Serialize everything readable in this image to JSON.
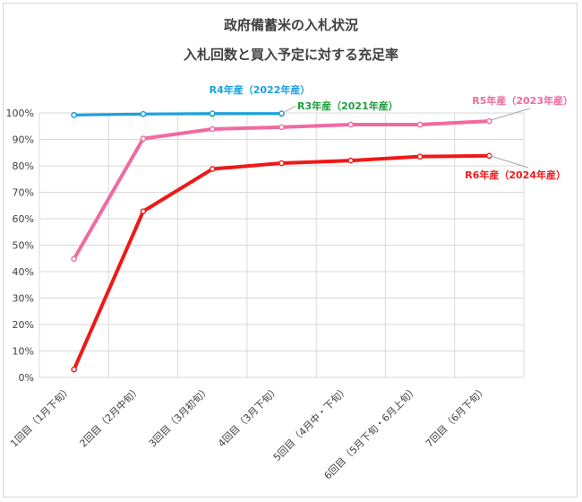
{
  "colors": {
    "r4": "#1aa0e0",
    "r3": "#1e9e3e",
    "r5": "#f06aa0",
    "r6": "#f01818",
    "grid": "#d9d9d9",
    "leader": "#a6a6a6"
  },
  "chart_data": {
    "type": "line",
    "title": "政府備蓄米の入札状況",
    "subtitle": "入札回数と買入予定に対する充足率",
    "xlabel": "",
    "ylabel": "",
    "ylim": [
      0,
      100
    ],
    "grid": true,
    "categories": [
      "1回目（1月下旬）",
      "2回目（2月中旬）",
      "3回目（3月初旬）",
      "4回目（3月下旬）",
      "5回目（4月中・下旬）",
      "6回目（5月下旬・6月上旬）",
      "7回目（6月下旬）"
    ],
    "y_ticks": [
      "0%",
      "10%",
      "20%",
      "30%",
      "40%",
      "50%",
      "60%",
      "70%",
      "80%",
      "90%",
      "100%"
    ],
    "series": [
      {
        "name": "R4年産（2022年産）",
        "key": "r4",
        "values": [
          99.2,
          99.6,
          99.8,
          99.8,
          null,
          null,
          null
        ]
      },
      {
        "name": "R3年産（2021年産）",
        "key": "r3",
        "values": [
          99.2,
          99.5,
          99.6,
          99.7,
          null,
          null,
          null
        ]
      },
      {
        "name": "R5年産（2023年産）",
        "key": "r5",
        "values": [
          44.8,
          90.3,
          93.9,
          94.6,
          95.6,
          95.6,
          96.9
        ]
      },
      {
        "name": "R6年産（2024年産）",
        "key": "r6",
        "values": [
          3.0,
          62.8,
          78.8,
          81.0,
          82.0,
          83.5,
          83.8
        ]
      }
    ]
  }
}
